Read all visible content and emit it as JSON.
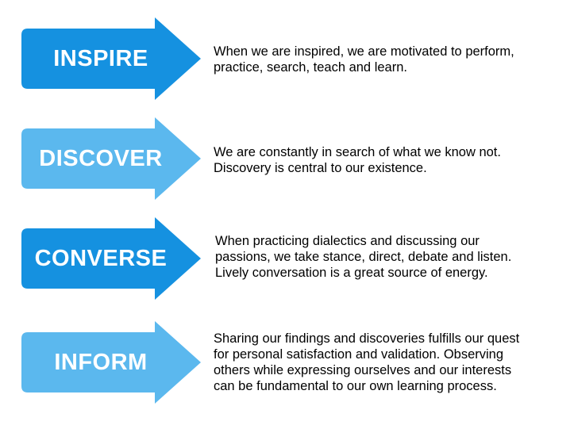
{
  "colors": {
    "dark_blue": "#1591e0",
    "light_blue": "#5bb8ee",
    "text": "#000000"
  },
  "steps": [
    {
      "label": "INSPIRE",
      "color": "dark_blue",
      "lines": [
        "When we are inspired, we are motivated to perform,",
        "practice, search, teach and learn."
      ]
    },
    {
      "label": "DISCOVER",
      "color": "light_blue",
      "lines": [
        "We are constantly in search of what we know not.",
        "Discovery is central to our existence."
      ]
    },
    {
      "label": "CONVERSE",
      "color": "dark_blue",
      "lines": [
        "When practicing dialectics and discussing our",
        "passions, we take stance, direct, debate and listen.",
        "Lively conversation is a great source of energy."
      ]
    },
    {
      "label": "INFORM",
      "color": "light_blue",
      "lines": [
        "Sharing our findings and discoveries fulfills our quest",
        "for personal satisfaction and validation. Observing",
        "others while expressing ourselves and our interests",
        "can be fundamental to our own learning process."
      ]
    }
  ]
}
